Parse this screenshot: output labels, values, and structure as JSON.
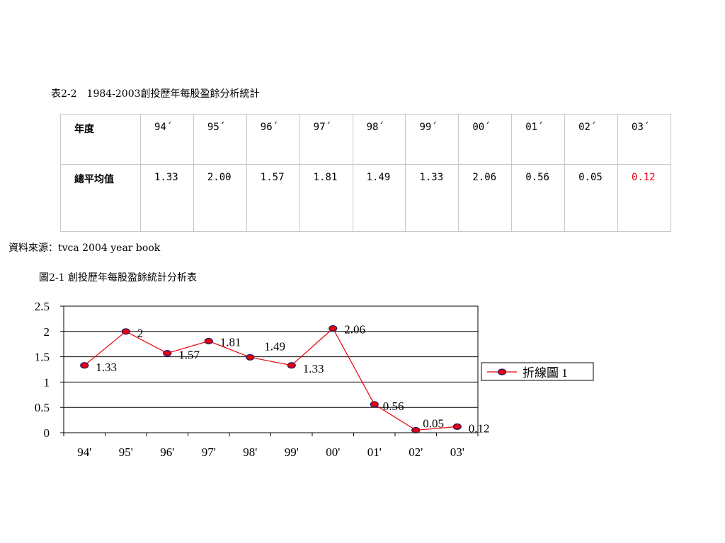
{
  "table_caption": "表2-2　1984-2003創投歷年每股盈餘分析統計",
  "table": {
    "row1_label": "年度",
    "row2_label": "總平均值",
    "years": [
      "94´",
      "95´",
      "96´",
      "97´",
      "98´",
      "99´",
      "00´",
      "01´",
      "02´",
      "03´"
    ],
    "values": [
      "1.33",
      "2.00",
      "1.57",
      "1.81",
      "1.49",
      "1.33",
      "2.06",
      "0.56",
      "0.05",
      "0.12"
    ],
    "highlight_color": "#e8000b"
  },
  "source_note": "資料來源：tvca 2004 year book",
  "figure_caption": "圖2-1 創投歷年每股盈餘統計分析表",
  "chart_data": {
    "type": "line",
    "categories": [
      "94'",
      "95'",
      "96'",
      "97'",
      "98'",
      "99'",
      "00'",
      "01'",
      "02'",
      "03'"
    ],
    "series": [
      {
        "name": "折線圖 1",
        "values": [
          1.33,
          2,
          1.57,
          1.81,
          1.49,
          1.33,
          2.06,
          0.56,
          0.05,
          0.12
        ],
        "data_labels": [
          "1.33",
          "2",
          "1.57",
          "1.81",
          "1.49",
          "1.33",
          "2.06",
          "0.56",
          "0.05",
          "0.12"
        ],
        "color": "#e8000b"
      }
    ],
    "ylim": [
      0,
      2.5
    ],
    "yticks": [
      "0",
      "0.5",
      "1",
      "1.5",
      "2",
      "2.5"
    ],
    "grid": true,
    "legend": "right"
  }
}
